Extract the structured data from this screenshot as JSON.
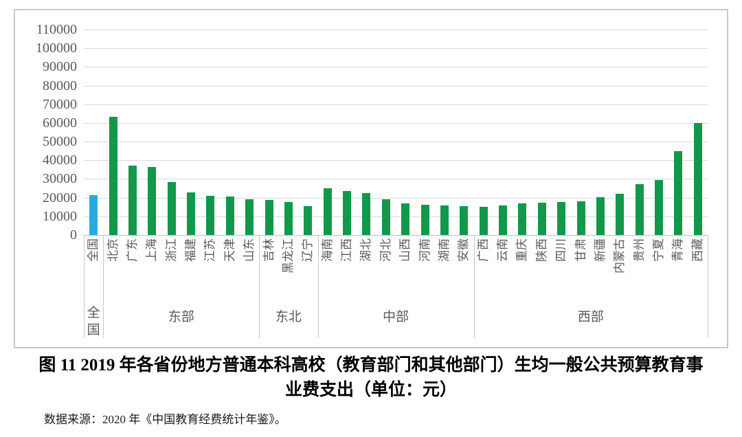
{
  "figure": {
    "title_line1": "图 11  2019 年各省份地方普通本科高校（教育部门和其他部门）生均一般公共预算教育事",
    "title_line2": "业费支出（单位：元）",
    "source": "数据来源：2020 年《中国教育经费统计年鉴》。"
  },
  "chart_data": {
    "type": "bar",
    "title": "2019年各省份地方普通本科高校（教育部门和其他部门）生均一般公共预算教育事业费支出",
    "unit": "元",
    "xlabel": "",
    "ylabel": "",
    "ylim": [
      0,
      110000
    ],
    "y_tick_step": 10000,
    "y_ticks": [
      0,
      10000,
      20000,
      30000,
      40000,
      50000,
      60000,
      70000,
      80000,
      90000,
      100000,
      110000
    ],
    "grid": true,
    "legend": "none",
    "colors": {
      "highlight": "#29abe2",
      "default": "#12984b"
    },
    "groups": [
      {
        "label": "全国",
        "items": [
          {
            "name": "全国",
            "value": 21200,
            "highlight": true
          }
        ]
      },
      {
        "label": "东部",
        "items": [
          {
            "name": "北京",
            "value": 63400
          },
          {
            "name": "广东",
            "value": 37300
          },
          {
            "name": "上海",
            "value": 36600
          },
          {
            "name": "浙江",
            "value": 28300
          },
          {
            "name": "福建",
            "value": 22800
          },
          {
            "name": "江苏",
            "value": 21100
          },
          {
            "name": "天津",
            "value": 20700
          },
          {
            "name": "山东",
            "value": 19000
          }
        ]
      },
      {
        "label": "东北",
        "items": [
          {
            "name": "吉林",
            "value": 18600
          },
          {
            "name": "黑龙江",
            "value": 17800
          },
          {
            "name": "辽宁",
            "value": 15400
          }
        ]
      },
      {
        "label": "中部",
        "items": [
          {
            "name": "海南",
            "value": 25200
          },
          {
            "name": "江西",
            "value": 23700
          },
          {
            "name": "湖北",
            "value": 22400
          },
          {
            "name": "河北",
            "value": 19200
          },
          {
            "name": "山西",
            "value": 16800
          },
          {
            "name": "河南",
            "value": 16200
          },
          {
            "name": "湖南",
            "value": 15900
          },
          {
            "name": "安徽",
            "value": 15500
          }
        ]
      },
      {
        "label": "西部",
        "items": [
          {
            "name": "广西",
            "value": 14900
          },
          {
            "name": "云南",
            "value": 15900
          },
          {
            "name": "重庆",
            "value": 17000
          },
          {
            "name": "陕西",
            "value": 17300
          },
          {
            "name": "四川",
            "value": 17700
          },
          {
            "name": "甘肃",
            "value": 18100
          },
          {
            "name": "新疆",
            "value": 20300
          },
          {
            "name": "内蒙古",
            "value": 21900
          },
          {
            "name": "贵州",
            "value": 27100
          },
          {
            "name": "宁夏",
            "value": 29500
          },
          {
            "name": "青海",
            "value": 44800
          },
          {
            "name": "西藏",
            "value": 59900
          }
        ]
      }
    ]
  }
}
